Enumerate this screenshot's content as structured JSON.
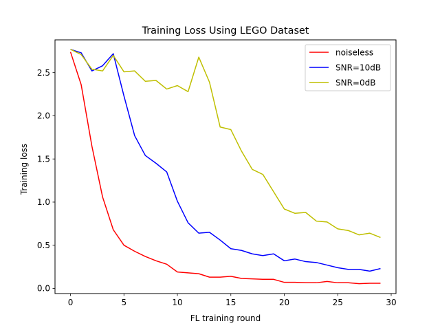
{
  "chart_data": {
    "type": "line",
    "title": "Training Loss Using LEGO Dataset",
    "xlabel": "FL training round",
    "ylabel": "Training loss",
    "xlim": [
      -1.45,
      30.45
    ],
    "ylim": [
      -0.06,
      2.88
    ],
    "xticks": [
      0,
      5,
      10,
      15,
      20,
      25,
      30
    ],
    "xtick_labels": [
      "0",
      "5",
      "10",
      "15",
      "20",
      "25",
      "30"
    ],
    "yticks": [
      0.0,
      0.5,
      1.0,
      1.5,
      2.0,
      2.5
    ],
    "ytick_labels": [
      "0.0",
      "0.5",
      "1.0",
      "1.5",
      "2.0",
      "2.5"
    ],
    "grid": false,
    "legend_position": "top-right",
    "x": [
      0,
      1,
      2,
      3,
      4,
      5,
      6,
      7,
      8,
      9,
      10,
      11,
      12,
      13,
      14,
      15,
      16,
      17,
      18,
      19,
      20,
      21,
      22,
      23,
      24,
      25,
      26,
      27,
      28,
      29
    ],
    "series": [
      {
        "name": "noiseless",
        "color": "#ff0000",
        "values": [
          2.74,
          2.36,
          1.65,
          1.06,
          0.68,
          0.5,
          0.43,
          0.37,
          0.32,
          0.28,
          0.19,
          0.18,
          0.17,
          0.13,
          0.13,
          0.14,
          0.115,
          0.11,
          0.105,
          0.105,
          0.07,
          0.07,
          0.065,
          0.065,
          0.08,
          0.065,
          0.065,
          0.055,
          0.06,
          0.06
        ]
      },
      {
        "name": "SNR=10dB",
        "color": "#0000ff",
        "values": [
          2.77,
          2.73,
          2.52,
          2.58,
          2.72,
          2.23,
          1.77,
          1.54,
          1.45,
          1.35,
          1.01,
          0.76,
          0.64,
          0.65,
          0.56,
          0.46,
          0.44,
          0.4,
          0.38,
          0.4,
          0.32,
          0.34,
          0.31,
          0.3,
          0.27,
          0.24,
          0.22,
          0.22,
          0.2,
          0.23
        ]
      },
      {
        "name": "SNR=0dB",
        "color": "#bfbf00",
        "values": [
          2.77,
          2.71,
          2.54,
          2.52,
          2.7,
          2.51,
          2.52,
          2.4,
          2.41,
          2.31,
          2.35,
          2.28,
          2.68,
          2.39,
          1.87,
          1.84,
          1.59,
          1.38,
          1.32,
          1.12,
          0.92,
          0.87,
          0.88,
          0.78,
          0.77,
          0.69,
          0.67,
          0.62,
          0.64,
          0.59
        ]
      }
    ]
  }
}
